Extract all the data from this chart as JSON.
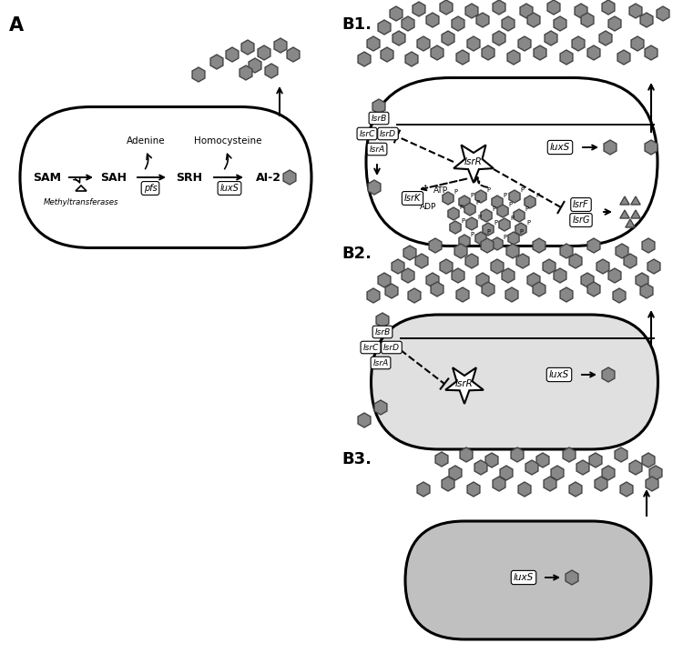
{
  "bg_color": "#ffffff",
  "hex_fc": "#888888",
  "hex_ec": "#444444",
  "tri_fc": "#888888",
  "tri_ec": "#444444",
  "cell_lw": 2.0,
  "label_A": "A",
  "label_B1": "B1.",
  "label_B2": "B2.",
  "label_B3": "B3."
}
